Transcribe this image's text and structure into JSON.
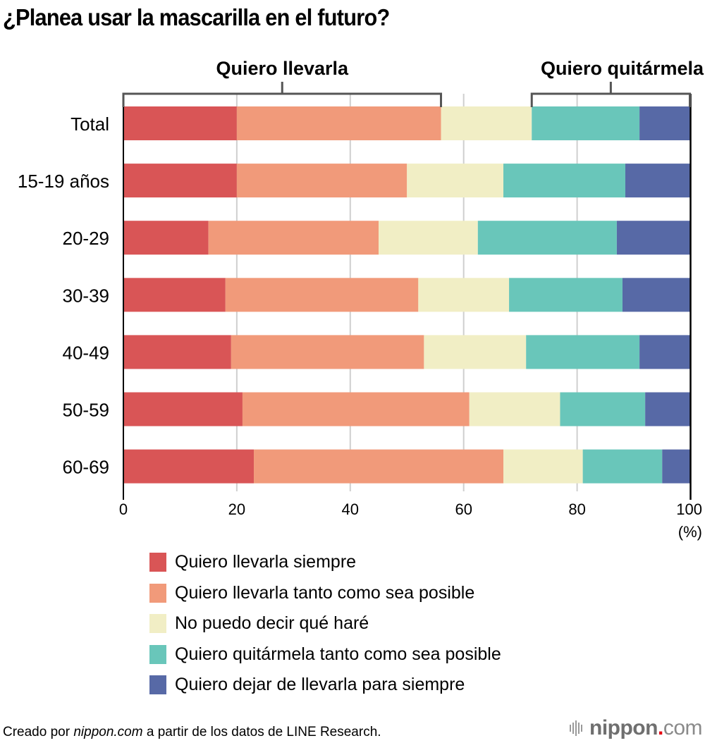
{
  "chart_data": {
    "type": "bar",
    "orientation": "horizontal",
    "stacked": true,
    "title": "¿Planea usar la mascarilla en el futuro?",
    "xlabel": "",
    "ylabel": "",
    "x_unit_label": "(%)",
    "xlim": [
      0,
      100
    ],
    "x_ticks": [
      "0",
      "20",
      "40",
      "60",
      "80",
      "100"
    ],
    "grid": true,
    "categories": [
      "Total",
      "15-19 años",
      "20-29",
      "30-39",
      "40-49",
      "50-59",
      "60-69"
    ],
    "series": [
      {
        "name": "Quiero llevarla siempre",
        "color": "#d95556",
        "values": [
          20,
          20,
          15,
          18,
          19,
          21,
          23
        ]
      },
      {
        "name": "Quiero llevarla tanto como sea posible",
        "color": "#f19a7a",
        "values": [
          36,
          30,
          30,
          34,
          34,
          40,
          44
        ]
      },
      {
        "name": "No puedo decir qué haré",
        "color": "#f1eec5",
        "values": [
          16,
          17,
          17.5,
          16,
          18,
          16,
          14
        ]
      },
      {
        "name": "Quiero quitármela tanto como sea posible",
        "color": "#69c6ba",
        "values": [
          19,
          21.5,
          24.5,
          20,
          20,
          15,
          14
        ]
      },
      {
        "name": "Quiero dejar de llevarla para siempre",
        "color": "#5769a6",
        "values": [
          9,
          11.5,
          13,
          12,
          9,
          8,
          5
        ]
      }
    ],
    "group_annotations": [
      {
        "label": "Quiero llevarla",
        "range_of_row": "Total",
        "from_series": 0,
        "to_series": 1
      },
      {
        "label": "Quiero quitármela",
        "range_of_row": "Total",
        "from_series": 3,
        "to_series": 4
      }
    ],
    "legend_position": "bottom-left"
  },
  "footer": {
    "prefix": "Creado por ",
    "source_site": "nippon.com",
    "suffix": " a partir de los datos de LINE Research."
  },
  "logo": {
    "name": "nippon",
    "dot": ".",
    "tld": "com"
  }
}
